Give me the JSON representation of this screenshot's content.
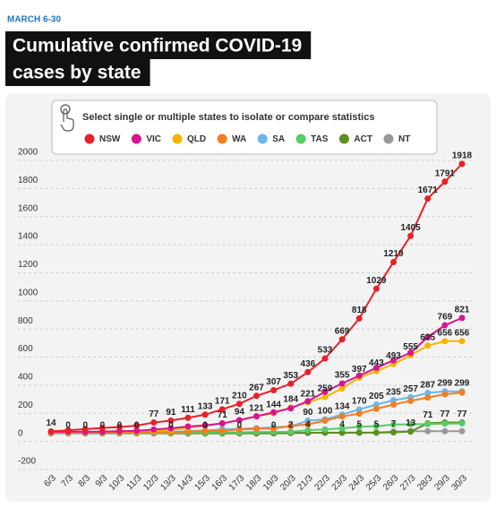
{
  "chart_data": {
    "type": "line",
    "subtitle": "MARCH 6-30",
    "title_lines": [
      "Cumulative confirmed COVID-19",
      "cases by state"
    ],
    "instruction": "Select single or multiple states to isolate or compare statistics",
    "categories": [
      "6/3",
      "7/3",
      "8/3",
      "9/3",
      "10/3",
      "11/3",
      "12/3",
      "13/3",
      "14/3",
      "15/3",
      "16/3",
      "17/3",
      "18/3",
      "19/3",
      "20/3",
      "21/3",
      "22/3",
      "23/3",
      "24/3",
      "25/3",
      "26/3",
      "27/3",
      "28/3",
      "29/3",
      "30/3"
    ],
    "series": [
      {
        "name": "NSW",
        "color": "#e8202a",
        "values": [
          14,
          22,
          30,
          38,
          45,
          55,
          77,
          91,
          111,
          133,
          171,
          210,
          267,
          307,
          353,
          436,
          533,
          669,
          818,
          1029,
          1219,
          1405,
          1671,
          1791,
          1918
        ],
        "value_labels": [
          "14",
          null,
          null,
          null,
          null,
          null,
          "77",
          "91",
          "111",
          "133",
          "171",
          "210",
          "267",
          "307",
          "353",
          "436",
          "533",
          "669",
          "818",
          "1029",
          "1219",
          "1405",
          "1671",
          "1791",
          "1918"
        ]
      },
      {
        "name": "VIC",
        "color": "#d6168f",
        "values": [
          10,
          11,
          11,
          12,
          15,
          18,
          27,
          36,
          49,
          57,
          71,
          94,
          121,
          150,
          178,
          229,
          296,
          355,
          411,
          466,
          520,
          574,
          685,
          769,
          821
        ],
        "value_labels": [
          null,
          null,
          null,
          null,
          null,
          null,
          null,
          null,
          null,
          null,
          null,
          null,
          null,
          null,
          null,
          null,
          null,
          "355",
          null,
          null,
          null,
          null,
          null,
          "769",
          "821"
        ]
      },
      {
        "name": "QLD",
        "color": "#f5b400",
        "values": [
          5,
          7,
          10,
          12,
          15,
          18,
          20,
          25,
          40,
          55,
          71,
          94,
          121,
          144,
          184,
          221,
          259,
          319,
          397,
          443,
          493,
          555,
          625,
          656,
          656
        ],
        "value_labels": [
          null,
          null,
          null,
          null,
          null,
          null,
          null,
          null,
          null,
          null,
          "71",
          "94",
          "121",
          "144",
          "184",
          "221",
          "259",
          null,
          "397",
          "443",
          "493",
          "555",
          "625",
          "656",
          "656"
        ]
      },
      {
        "name": "WA",
        "color": "#f57c20",
        "values": [
          3,
          3,
          3,
          4,
          4,
          5,
          9,
          9,
          14,
          17,
          18,
          28,
          31,
          35,
          52,
          64,
          90,
          120,
          140,
          175,
          205,
          231,
          255,
          278,
          290
        ],
        "value_labels": [
          null,
          null,
          null,
          null,
          null,
          null,
          null,
          null,
          null,
          null,
          null,
          null,
          null,
          null,
          null,
          null,
          null,
          null,
          null,
          null,
          null,
          null,
          null,
          null,
          null
        ]
      },
      {
        "name": "SA",
        "color": "#6ab7ea",
        "values": [
          2,
          3,
          4,
          5,
          6,
          7,
          9,
          10,
          16,
          20,
          29,
          32,
          37,
          42,
          50,
          90,
          100,
          134,
          170,
          205,
          235,
          257,
          287,
          299,
          299
        ],
        "value_labels": [
          null,
          null,
          null,
          null,
          null,
          null,
          null,
          null,
          null,
          null,
          null,
          null,
          null,
          null,
          null,
          "90",
          "100",
          "134",
          "170",
          "205",
          "235",
          "257",
          "287",
          "299",
          "299"
        ]
      },
      {
        "name": "TAS",
        "color": "#55cc66",
        "values": [
          1,
          1,
          1,
          1,
          1,
          1,
          2,
          3,
          5,
          6,
          7,
          7,
          10,
          10,
          11,
          22,
          28,
          36,
          47,
          51,
          62,
          65,
          66,
          69,
          71
        ],
        "value_labels": [
          null,
          null,
          null,
          null,
          null,
          null,
          null,
          null,
          null,
          null,
          null,
          null,
          null,
          null,
          null,
          null,
          null,
          null,
          null,
          null,
          null,
          null,
          null,
          null,
          null
        ]
      },
      {
        "name": "ACT",
        "color": "#5b8f1e",
        "values": [
          0,
          0,
          0,
          0,
          0,
          0,
          0,
          0,
          0,
          0,
          0,
          0,
          0,
          0,
          2,
          4,
          4,
          4,
          5,
          5,
          7,
          13,
          71,
          77,
          77
        ],
        "value_labels": [
          null,
          "0",
          "0",
          "0",
          "0",
          "0",
          null,
          "0",
          null,
          "0",
          null,
          "0",
          null,
          "0",
          "2",
          "4",
          null,
          "4",
          "5",
          "5",
          "7",
          "13",
          "71",
          "77",
          "77"
        ]
      },
      {
        "name": "NT",
        "color": "#999999",
        "values": [
          0,
          0,
          0,
          0,
          0,
          0,
          0,
          0,
          0,
          0,
          1,
          1,
          1,
          1,
          3,
          3,
          5,
          5,
          5,
          6,
          12,
          15,
          15,
          15,
          15
        ],
        "value_labels": [
          null,
          null,
          null,
          null,
          null,
          null,
          null,
          null,
          null,
          null,
          null,
          null,
          null,
          null,
          null,
          null,
          null,
          null,
          null,
          null,
          null,
          null,
          null,
          null,
          null
        ]
      }
    ],
    "ylim": [
      -200,
      2000
    ],
    "yticks": [
      -200,
      0,
      200,
      400,
      600,
      800,
      1000,
      1200,
      1400,
      1600,
      1800,
      2000
    ],
    "grid": true
  }
}
